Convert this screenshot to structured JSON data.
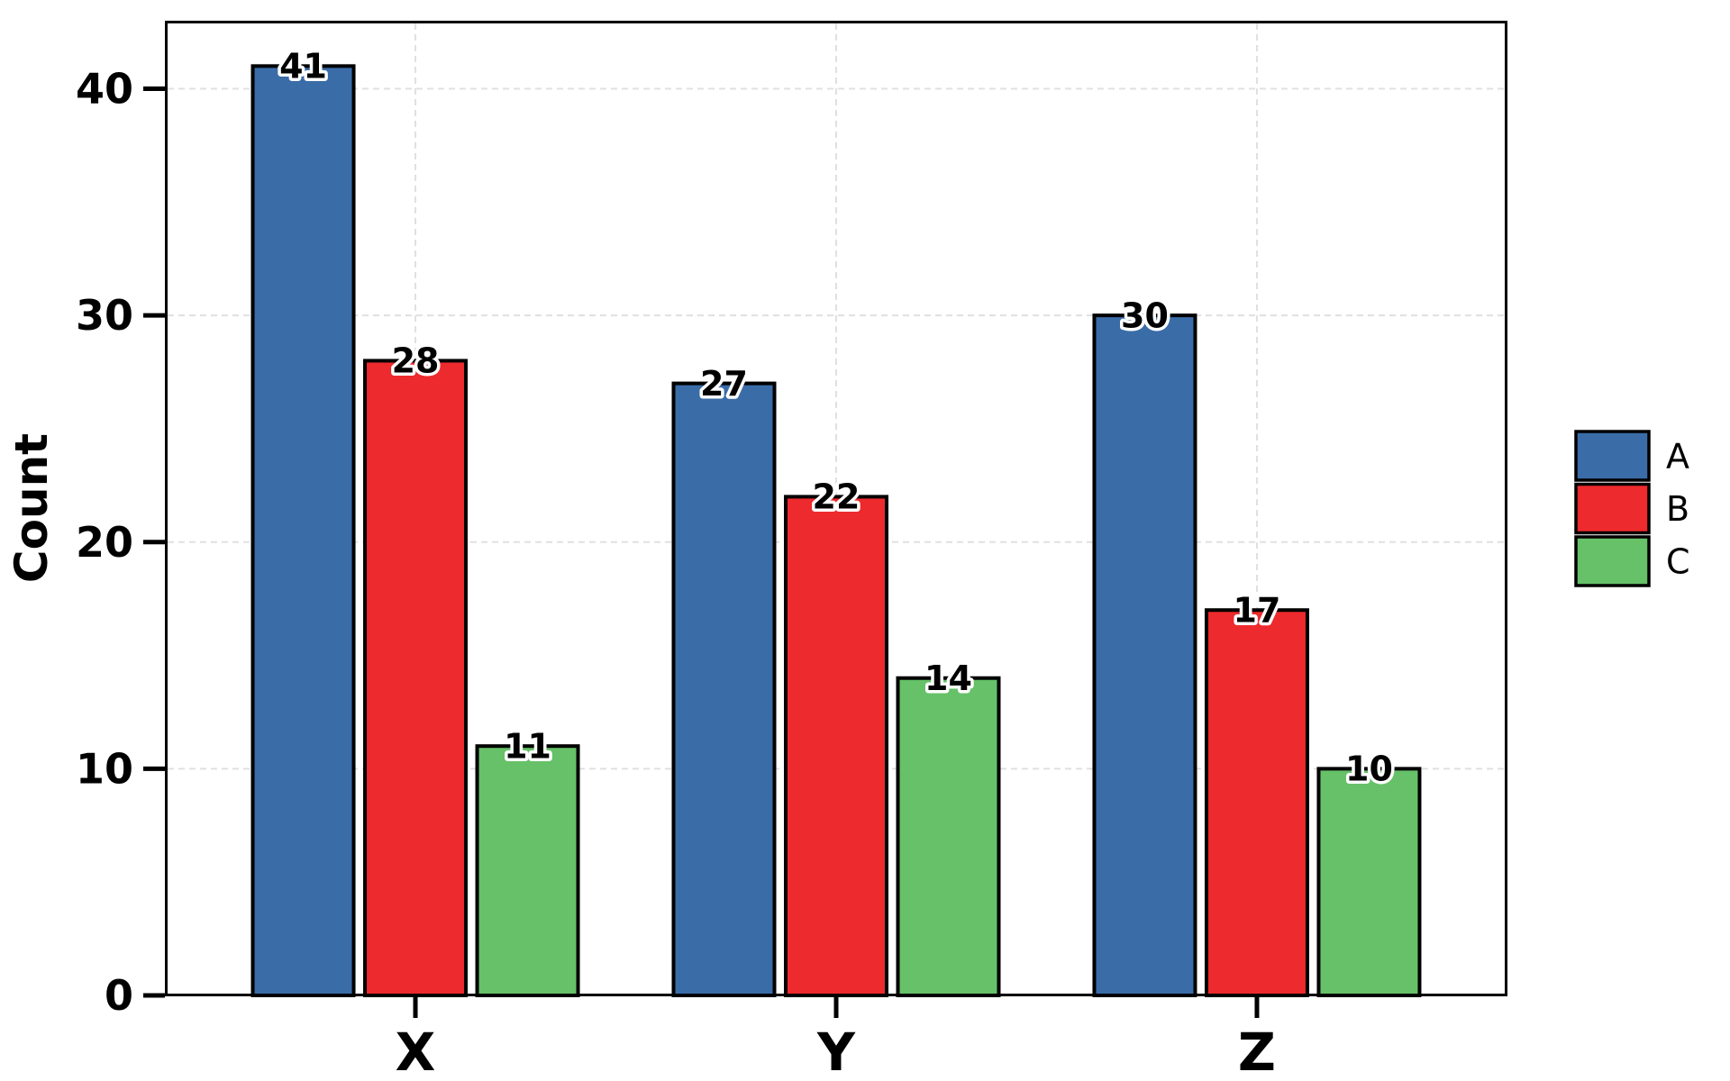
{
  "chart_data": {
    "type": "bar",
    "title": "",
    "categories": [
      "X",
      "Y",
      "Z"
    ],
    "series": [
      {
        "name": "A",
        "color": "#3A6CA8",
        "values": [
          41,
          27,
          30
        ]
      },
      {
        "name": "B",
        "color": "#ED2A2D",
        "values": [
          28,
          22,
          17
        ]
      },
      {
        "name": "C",
        "color": "#66C168",
        "values": [
          11,
          14,
          10
        ]
      }
    ],
    "xlabel": "",
    "ylabel": "Count",
    "yticks": [
      0,
      10,
      20,
      30,
      40
    ],
    "ylim": [
      0,
      43
    ],
    "value_labels_shown": true,
    "grid": {
      "horizontal": true,
      "vertical": true,
      "line_style": "dashed",
      "color": "#E0E0E0"
    },
    "legend": {
      "position": "center-right-outside",
      "entries": [
        "A",
        "B",
        "C"
      ]
    },
    "style": {
      "bar_edge_color": "#000000",
      "axis_color": "#000000",
      "text_color": "#000000",
      "background_color": "#FFFFFF",
      "value_label_outline": "#FFFFFF"
    }
  }
}
